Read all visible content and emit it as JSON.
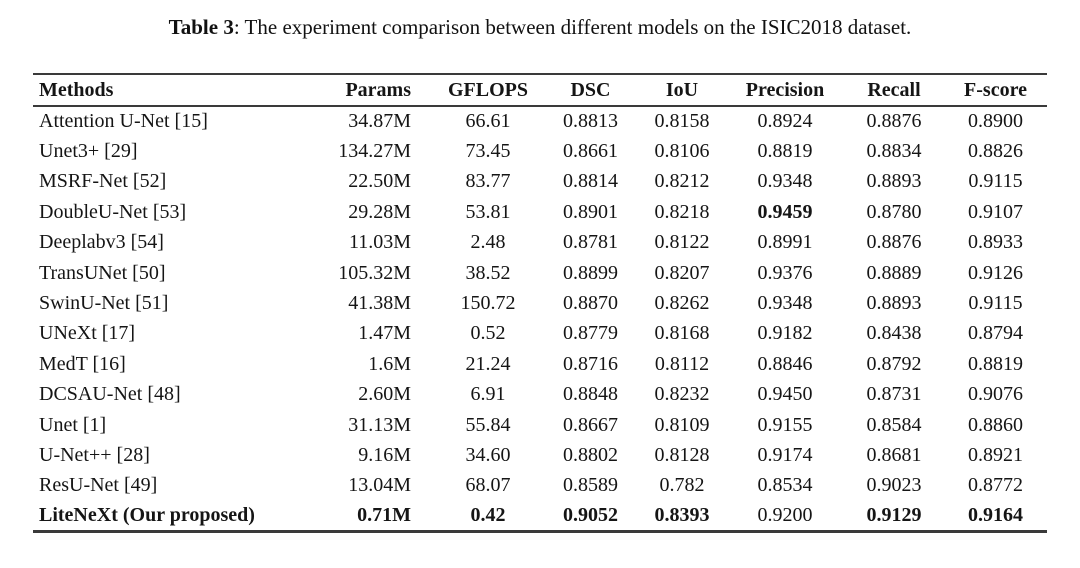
{
  "title": {
    "prefix": "Table 3",
    "rest": ": The experiment comparison between different models on the ISIC2018 dataset."
  },
  "table": {
    "headers": [
      "Methods",
      "Params",
      "GFLOPS",
      "DSC",
      "IoU",
      "Precision",
      "Recall",
      "F-score"
    ],
    "rows": [
      {
        "cells": [
          "Attention U-Net [15]",
          "34.87M",
          "66.61",
          "0.8813",
          "0.8158",
          "0.8924",
          "0.8876",
          "0.8900"
        ],
        "bold": []
      },
      {
        "cells": [
          "Unet3+ [29]",
          "134.27M",
          "73.45",
          "0.8661",
          "0.8106",
          "0.8819",
          "0.8834",
          "0.8826"
        ],
        "bold": []
      },
      {
        "cells": [
          "MSRF-Net [52]",
          "22.50M",
          "83.77",
          "0.8814",
          "0.8212",
          "0.9348",
          "0.8893",
          "0.9115"
        ],
        "bold": []
      },
      {
        "cells": [
          "DoubleU-Net [53]",
          "29.28M",
          "53.81",
          "0.8901",
          "0.8218",
          "0.9459",
          "0.8780",
          "0.9107"
        ],
        "bold": [
          5
        ]
      },
      {
        "cells": [
          "Deeplabv3 [54]",
          "11.03M",
          "2.48",
          "0.8781",
          "0.8122",
          "0.8991",
          "0.8876",
          "0.8933"
        ],
        "bold": []
      },
      {
        "cells": [
          "TransUNet [50]",
          "105.32M",
          "38.52",
          "0.8899",
          "0.8207",
          "0.9376",
          "0.8889",
          "0.9126"
        ],
        "bold": []
      },
      {
        "cells": [
          "SwinU-Net [51]",
          "41.38M",
          "150.72",
          "0.8870",
          "0.8262",
          "0.9348",
          "0.8893",
          "0.9115"
        ],
        "bold": []
      },
      {
        "cells": [
          "UNeXt [17]",
          "1.47M",
          "0.52",
          "0.8779",
          "0.8168",
          "0.9182",
          "0.8438",
          "0.8794"
        ],
        "bold": []
      },
      {
        "cells": [
          "MedT [16]",
          "1.6M",
          "21.24",
          "0.8716",
          "0.8112",
          "0.8846",
          "0.8792",
          "0.8819"
        ],
        "bold": []
      },
      {
        "cells": [
          "DCSAU-Net [48]",
          "2.60M",
          "6.91",
          "0.8848",
          "0.8232",
          "0.9450",
          "0.8731",
          "0.9076"
        ],
        "bold": []
      },
      {
        "cells": [
          "Unet [1]",
          "31.13M",
          "55.84",
          "0.8667",
          "0.8109",
          "0.9155",
          "0.8584",
          "0.8860"
        ],
        "bold": []
      },
      {
        "cells": [
          "U-Net++ [28]",
          "9.16M",
          "34.60",
          "0.8802",
          "0.8128",
          "0.9174",
          "0.8681",
          "0.8921"
        ],
        "bold": []
      },
      {
        "cells": [
          "ResU-Net [49]",
          "13.04M",
          "68.07",
          "0.8589",
          "0.782",
          "0.8534",
          "0.9023",
          "0.8772"
        ],
        "bold": []
      },
      {
        "cells": [
          "LiteNeXt (Our proposed)",
          "0.71M",
          "0.42",
          "0.9052",
          "0.8393",
          "0.9200",
          "0.9129",
          "0.9164"
        ],
        "bold": [
          0,
          1,
          2,
          3,
          4,
          6,
          7
        ]
      }
    ]
  }
}
